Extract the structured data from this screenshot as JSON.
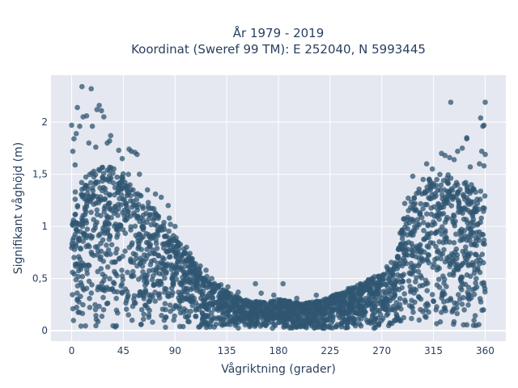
{
  "chart_data": {
    "type": "scatter",
    "title_line1": "År 1979 - 2019",
    "title_line2": "Koordinat (Sweref 99 TM): E 252040, N 5993445",
    "xlabel": "Vågriktning (grader)",
    "ylabel": "Signifikant våghöjd (m)",
    "xlim": [
      -18,
      378
    ],
    "ylim": [
      -0.1,
      2.45
    ],
    "x_ticks": [
      0,
      45,
      90,
      135,
      180,
      225,
      270,
      315,
      360
    ],
    "x_tick_labels": [
      "0",
      "45",
      "90",
      "135",
      "180",
      "225",
      "270",
      "315",
      "360"
    ],
    "y_ticks": [
      0,
      0.5,
      1,
      1.5,
      2
    ],
    "y_tick_labels": [
      "0",
      "0,5",
      "1",
      "1,5",
      "2"
    ],
    "grid": true,
    "marker_color": "#2f5571",
    "plot_bg": "#e5e8f0",
    "envelope": {
      "x": [
        0,
        10,
        20,
        30,
        40,
        50,
        60,
        70,
        80,
        90,
        100,
        110,
        120,
        130,
        140,
        150,
        160,
        170,
        180,
        190,
        200,
        210,
        220,
        230,
        240,
        250,
        260,
        270,
        280,
        290,
        300,
        310,
        320,
        330,
        340,
        350,
        360
      ],
      "ymax": [
        1.35,
        1.45,
        1.55,
        1.62,
        1.55,
        1.5,
        1.3,
        1.2,
        1.05,
        0.9,
        0.75,
        0.62,
        0.5,
        0.42,
        0.35,
        0.3,
        0.28,
        0.28,
        0.3,
        0.28,
        0.26,
        0.28,
        0.3,
        0.35,
        0.4,
        0.45,
        0.5,
        0.55,
        0.7,
        1.1,
        1.35,
        1.45,
        1.5,
        1.5,
        1.45,
        1.4,
        1.35
      ]
    },
    "outliers": [
      {
        "x": 9,
        "y": 2.34
      },
      {
        "x": 17,
        "y": 2.32
      },
      {
        "x": 5,
        "y": 2.14
      },
      {
        "x": 24,
        "y": 2.16
      },
      {
        "x": 26,
        "y": 2.11
      },
      {
        "x": 22,
        "y": 2.12
      },
      {
        "x": 10,
        "y": 2.05
      },
      {
        "x": 13,
        "y": 2.06
      },
      {
        "x": 28,
        "y": 2.05
      },
      {
        "x": 18,
        "y": 1.96
      },
      {
        "x": 0,
        "y": 1.97
      },
      {
        "x": 7,
        "y": 1.96
      },
      {
        "x": 4,
        "y": 1.89
      },
      {
        "x": 2,
        "y": 1.84
      },
      {
        "x": 34,
        "y": 1.87
      },
      {
        "x": 33,
        "y": 1.82
      },
      {
        "x": 15,
        "y": 1.8
      },
      {
        "x": 31,
        "y": 1.8
      },
      {
        "x": 21,
        "y": 1.76
      },
      {
        "x": 1,
        "y": 1.72
      },
      {
        "x": 41,
        "y": 1.73
      },
      {
        "x": 50,
        "y": 1.74
      },
      {
        "x": 52,
        "y": 1.72
      },
      {
        "x": 55,
        "y": 1.71
      },
      {
        "x": 57,
        "y": 1.69
      },
      {
        "x": 3,
        "y": 1.59
      },
      {
        "x": 44,
        "y": 1.65
      },
      {
        "x": 59,
        "y": 1.5
      },
      {
        "x": 66,
        "y": 1.35
      },
      {
        "x": 73,
        "y": 1.31
      },
      {
        "x": 78,
        "y": 1.28
      },
      {
        "x": 84,
        "y": 1.2
      },
      {
        "x": 85,
        "y": 1.08
      },
      {
        "x": 86,
        "y": 1.02
      },
      {
        "x": 90,
        "y": 1.0
      },
      {
        "x": 91,
        "y": 0.89
      },
      {
        "x": 93,
        "y": 0.82
      },
      {
        "x": 100,
        "y": 0.8
      },
      {
        "x": 103,
        "y": 0.74
      },
      {
        "x": 105,
        "y": 0.69
      },
      {
        "x": 108,
        "y": 0.64
      },
      {
        "x": 112,
        "y": 0.62
      },
      {
        "x": 117,
        "y": 0.58
      },
      {
        "x": 122,
        "y": 0.5
      },
      {
        "x": 130,
        "y": 0.44
      },
      {
        "x": 136,
        "y": 0.42
      },
      {
        "x": 145,
        "y": 0.37
      },
      {
        "x": 160,
        "y": 0.45
      },
      {
        "x": 165,
        "y": 0.36
      },
      {
        "x": 176,
        "y": 0.34
      },
      {
        "x": 184,
        "y": 0.45
      },
      {
        "x": 196,
        "y": 0.31
      },
      {
        "x": 213,
        "y": 0.34
      },
      {
        "x": 231,
        "y": 0.34
      },
      {
        "x": 244,
        "y": 0.41
      },
      {
        "x": 251,
        "y": 0.37
      },
      {
        "x": 256,
        "y": 0.45
      },
      {
        "x": 262,
        "y": 0.42
      },
      {
        "x": 266,
        "y": 0.44
      },
      {
        "x": 270,
        "y": 0.46
      },
      {
        "x": 276,
        "y": 0.5
      },
      {
        "x": 279,
        "y": 0.55
      },
      {
        "x": 282,
        "y": 0.62
      },
      {
        "x": 284,
        "y": 0.7
      },
      {
        "x": 288,
        "y": 0.92
      },
      {
        "x": 289,
        "y": 1.07
      },
      {
        "x": 290,
        "y": 1.22
      },
      {
        "x": 293,
        "y": 1.27
      },
      {
        "x": 297,
        "y": 1.48
      },
      {
        "x": 306,
        "y": 1.45
      },
      {
        "x": 309,
        "y": 1.6
      },
      {
        "x": 314,
        "y": 1.55
      },
      {
        "x": 322,
        "y": 1.7
      },
      {
        "x": 325,
        "y": 1.68
      },
      {
        "x": 329,
        "y": 1.66
      },
      {
        "x": 333,
        "y": 1.64
      },
      {
        "x": 336,
        "y": 1.72
      },
      {
        "x": 340,
        "y": 1.75
      },
      {
        "x": 344,
        "y": 1.84
      },
      {
        "x": 347,
        "y": 1.57
      },
      {
        "x": 355,
        "y": 1.6
      },
      {
        "x": 357,
        "y": 1.72
      },
      {
        "x": 359,
        "y": 1.58
      },
      {
        "x": 360,
        "y": 1.69
      },
      {
        "x": 358,
        "y": 1.96
      },
      {
        "x": 359,
        "y": 1.97
      },
      {
        "x": 356,
        "y": 2.04
      },
      {
        "x": 360,
        "y": 2.19
      },
      {
        "x": 330,
        "y": 2.19
      },
      {
        "x": 344,
        "y": 1.85
      }
    ]
  }
}
